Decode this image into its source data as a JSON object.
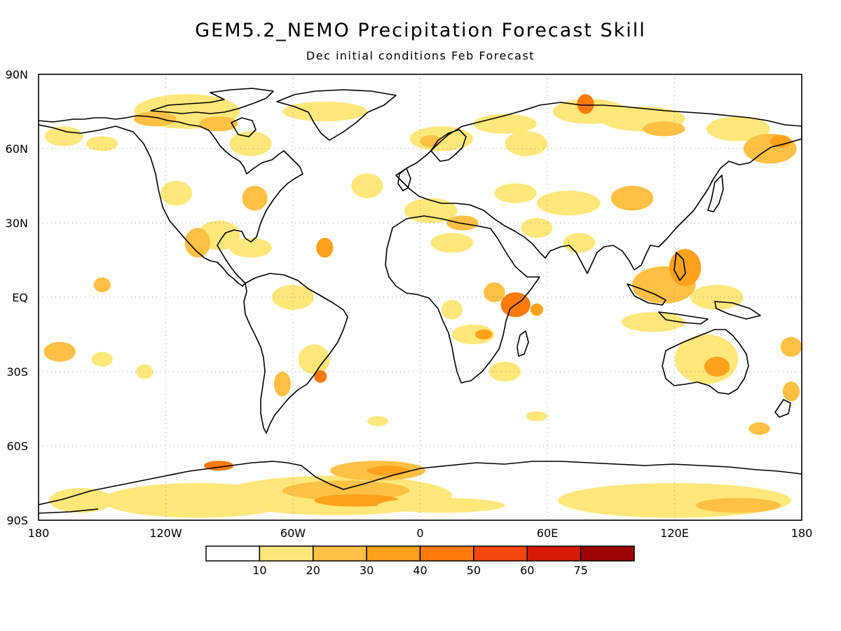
{
  "title": "GEM5.2_NEMO Precipitation Forecast Skill",
  "subtitle": "Dec initial conditions  Feb Forecast",
  "lat_ticks": [
    "90N",
    "60N",
    "30N",
    "EQ",
    "30S",
    "60S",
    "90S"
  ],
  "lon_ticks": [
    "180",
    "120W",
    "60W",
    "0",
    "60E",
    "120E",
    "180"
  ],
  "colorbar": {
    "labels": [
      "10",
      "20",
      "30",
      "40",
      "50",
      "60",
      "75"
    ],
    "colors": [
      "#ffffff",
      "#ffe77a",
      "#ffc043",
      "#ffa11a",
      "#ff7a0a",
      "#f3460e",
      "#d41b06",
      "#9c0303"
    ]
  },
  "chart_data": {
    "type": "map",
    "variable": "Precipitation forecast skill",
    "lat_range": [
      -90,
      90
    ],
    "lon_range": [
      -180,
      180
    ],
    "grid": "dotted",
    "contour_levels": [
      10,
      20,
      30,
      40,
      50,
      60,
      75
    ],
    "regions": [
      {
        "lon": -105,
        "lat": -82,
        "w": 90,
        "h": 14,
        "level": 1
      },
      {
        "lon": -40,
        "lat": -80,
        "w": 110,
        "h": 16,
        "level": 1
      },
      {
        "lon": -35,
        "lat": -78,
        "w": 60,
        "h": 8,
        "level": 2
      },
      {
        "lon": -30,
        "lat": -82,
        "w": 40,
        "h": 5,
        "level": 3
      },
      {
        "lon": -20,
        "lat": -70,
        "w": 45,
        "h": 8,
        "level": 2
      },
      {
        "lon": -15,
        "lat": -70,
        "w": 20,
        "h": 4,
        "level": 3
      },
      {
        "lon": 120,
        "lat": -82,
        "w": 110,
        "h": 14,
        "level": 1
      },
      {
        "lon": 150,
        "lat": -84,
        "w": 40,
        "h": 6,
        "level": 2
      },
      {
        "lon": -95,
        "lat": -68,
        "w": 14,
        "h": 4,
        "level": 4
      },
      {
        "lon": -160,
        "lat": -82,
        "w": 30,
        "h": 10,
        "level": 1
      },
      {
        "lon": 10,
        "lat": -84,
        "w": 60,
        "h": 6,
        "level": 1
      },
      {
        "lon": -110,
        "lat": 75,
        "w": 50,
        "h": 14,
        "level": 1
      },
      {
        "lon": -125,
        "lat": 72,
        "w": 20,
        "h": 6,
        "level": 2
      },
      {
        "lon": -80,
        "lat": 62,
        "w": 20,
        "h": 10,
        "level": 1
      },
      {
        "lon": -168,
        "lat": 65,
        "w": 18,
        "h": 8,
        "level": 1
      },
      {
        "lon": -150,
        "lat": 62,
        "w": 15,
        "h": 6,
        "level": 1
      },
      {
        "lon": -95,
        "lat": 70,
        "w": 18,
        "h": 6,
        "level": 2
      },
      {
        "lon": -45,
        "lat": 75,
        "w": 40,
        "h": 8,
        "level": 1
      },
      {
        "lon": 10,
        "lat": 64,
        "w": 30,
        "h": 10,
        "level": 1
      },
      {
        "lon": 5,
        "lat": 63,
        "w": 10,
        "h": 5,
        "level": 2
      },
      {
        "lon": 40,
        "lat": 70,
        "w": 30,
        "h": 8,
        "level": 1
      },
      {
        "lon": 80,
        "lat": 75,
        "w": 35,
        "h": 10,
        "level": 1
      },
      {
        "lon": 78,
        "lat": 78,
        "w": 8,
        "h": 8,
        "level": 4
      },
      {
        "lon": 105,
        "lat": 72,
        "w": 40,
        "h": 10,
        "level": 1
      },
      {
        "lon": 115,
        "lat": 68,
        "w": 20,
        "h": 6,
        "level": 2
      },
      {
        "lon": 150,
        "lat": 68,
        "w": 30,
        "h": 10,
        "level": 1
      },
      {
        "lon": 165,
        "lat": 60,
        "w": 25,
        "h": 12,
        "level": 2
      },
      {
        "lon": 170,
        "lat": 63,
        "w": 10,
        "h": 5,
        "level": 3
      },
      {
        "lon": 50,
        "lat": 62,
        "w": 20,
        "h": 10,
        "level": 1
      },
      {
        "lon": -115,
        "lat": 42,
        "w": 15,
        "h": 10,
        "level": 1
      },
      {
        "lon": -78,
        "lat": 40,
        "w": 12,
        "h": 10,
        "level": 2
      },
      {
        "lon": -95,
        "lat": 25,
        "w": 20,
        "h": 12,
        "level": 1
      },
      {
        "lon": -105,
        "lat": 22,
        "w": 12,
        "h": 12,
        "level": 2
      },
      {
        "lon": -80,
        "lat": 20,
        "w": 20,
        "h": 8,
        "level": 1
      },
      {
        "lon": -45,
        "lat": 20,
        "w": 8,
        "h": 8,
        "level": 3
      },
      {
        "lon": -150,
        "lat": 5,
        "w": 8,
        "h": 6,
        "level": 2
      },
      {
        "lon": -25,
        "lat": 45,
        "w": 15,
        "h": 10,
        "level": 1
      },
      {
        "lon": 5,
        "lat": 35,
        "w": 25,
        "h": 10,
        "level": 1
      },
      {
        "lon": 15,
        "lat": 22,
        "w": 20,
        "h": 8,
        "level": 1
      },
      {
        "lon": 20,
        "lat": 30,
        "w": 15,
        "h": 6,
        "level": 2
      },
      {
        "lon": 45,
        "lat": 42,
        "w": 20,
        "h": 8,
        "level": 1
      },
      {
        "lon": 70,
        "lat": 38,
        "w": 30,
        "h": 10,
        "level": 1
      },
      {
        "lon": 100,
        "lat": 40,
        "w": 20,
        "h": 10,
        "level": 2
      },
      {
        "lon": 55,
        "lat": 28,
        "w": 15,
        "h": 8,
        "level": 1
      },
      {
        "lon": 75,
        "lat": 22,
        "w": 15,
        "h": 8,
        "level": 1
      },
      {
        "lon": 45,
        "lat": -3,
        "w": 14,
        "h": 10,
        "level": 4
      },
      {
        "lon": 35,
        "lat": 2,
        "w": 10,
        "h": 8,
        "level": 2
      },
      {
        "lon": 55,
        "lat": -5,
        "w": 6,
        "h": 5,
        "level": 3
      },
      {
        "lon": 25,
        "lat": -15,
        "w": 20,
        "h": 8,
        "level": 1
      },
      {
        "lon": 30,
        "lat": -15,
        "w": 8,
        "h": 4,
        "level": 3
      },
      {
        "lon": 15,
        "lat": -5,
        "w": 10,
        "h": 8,
        "level": 1
      },
      {
        "lon": 40,
        "lat": -30,
        "w": 15,
        "h": 8,
        "level": 1
      },
      {
        "lon": -60,
        "lat": 0,
        "w": 20,
        "h": 10,
        "level": 1
      },
      {
        "lon": -50,
        "lat": -25,
        "w": 15,
        "h": 12,
        "level": 1
      },
      {
        "lon": -47,
        "lat": -32,
        "w": 6,
        "h": 5,
        "level": 4
      },
      {
        "lon": -65,
        "lat": -35,
        "w": 8,
        "h": 10,
        "level": 2
      },
      {
        "lon": -170,
        "lat": -22,
        "w": 15,
        "h": 8,
        "level": 2
      },
      {
        "lon": -150,
        "lat": -25,
        "w": 10,
        "h": 6,
        "level": 1
      },
      {
        "lon": 115,
        "lat": 5,
        "w": 30,
        "h": 15,
        "level": 2
      },
      {
        "lon": 125,
        "lat": 12,
        "w": 15,
        "h": 15,
        "level": 3
      },
      {
        "lon": 140,
        "lat": 0,
        "w": 25,
        "h": 10,
        "level": 1
      },
      {
        "lon": 110,
        "lat": -10,
        "w": 30,
        "h": 8,
        "level": 1
      },
      {
        "lon": 135,
        "lat": -25,
        "w": 30,
        "h": 20,
        "level": 1
      },
      {
        "lon": 140,
        "lat": -28,
        "w": 12,
        "h": 8,
        "level": 3
      },
      {
        "lon": 175,
        "lat": -20,
        "w": 10,
        "h": 8,
        "level": 2
      },
      {
        "lon": 175,
        "lat": -38,
        "w": 8,
        "h": 8,
        "level": 2
      },
      {
        "lon": 160,
        "lat": -53,
        "w": 10,
        "h": 5,
        "level": 2
      },
      {
        "lon": -130,
        "lat": -30,
        "w": 8,
        "h": 6,
        "level": 1
      },
      {
        "lon": -20,
        "lat": -50,
        "w": 10,
        "h": 4,
        "level": 1
      },
      {
        "lon": 55,
        "lat": -48,
        "w": 10,
        "h": 4,
        "level": 1
      }
    ]
  }
}
